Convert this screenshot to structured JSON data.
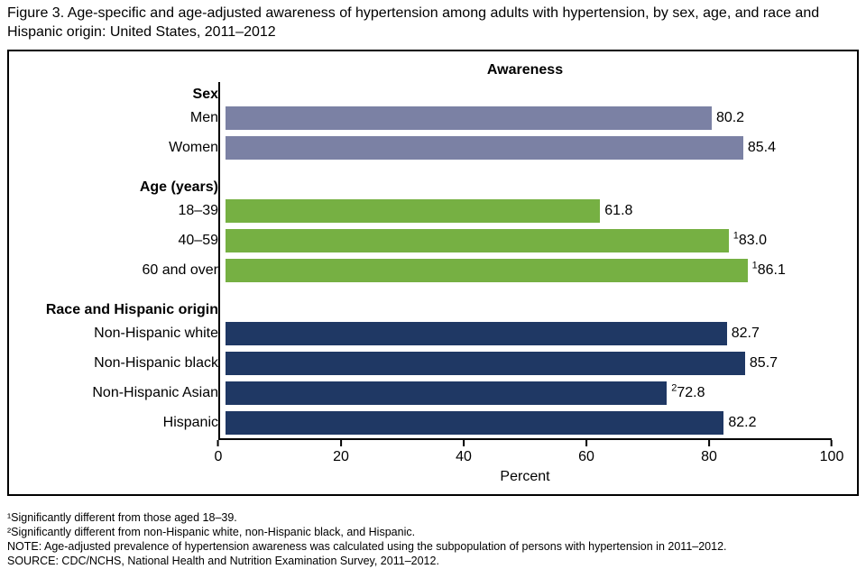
{
  "figure_title": "Figure 3. Age-specific and age-adjusted awareness of hypertension among adults with hypertension, by sex, age, and race and Hispanic origin: United States, 2011–2012",
  "chart_data": {
    "type": "bar",
    "orientation": "horizontal",
    "title": "Awareness",
    "xlabel": "Percent",
    "xlim": [
      0,
      100
    ],
    "x_ticks": [
      0,
      20,
      40,
      60,
      80,
      100
    ],
    "grid": false,
    "legend": false,
    "groups": [
      {
        "header": "Sex",
        "color": "#7B81A4",
        "bars": [
          {
            "label": "Men",
            "value": 80.2,
            "value_label": "80.2"
          },
          {
            "label": "Women",
            "value": 85.4,
            "value_label": "85.4"
          }
        ]
      },
      {
        "header": "Age (years)",
        "color": "#76B043",
        "bars": [
          {
            "label": "18–39",
            "value": 61.8,
            "value_label": "61.8"
          },
          {
            "label": "40–59",
            "value": 83.0,
            "value_label": "83.0",
            "superscript": "1"
          },
          {
            "label": "60 and over",
            "value": 86.1,
            "value_label": "86.1",
            "superscript": "1"
          }
        ]
      },
      {
        "header": "Race and Hispanic origin",
        "color": "#1F3864",
        "bars": [
          {
            "label": "Non-Hispanic white",
            "value": 82.7,
            "value_label": "82.7"
          },
          {
            "label": "Non-Hispanic black",
            "value": 85.7,
            "value_label": "85.7"
          },
          {
            "label": "Non-Hispanic Asian",
            "value": 72.8,
            "value_label": "72.8",
            "superscript": "2"
          },
          {
            "label": "Hispanic",
            "value": 82.2,
            "value_label": "82.2"
          }
        ]
      }
    ]
  },
  "footnotes": [
    "¹Significantly different from those aged 18–39.",
    "²Significantly different from non-Hispanic white, non-Hispanic black, and Hispanic.",
    "NOTE: Age-adjusted prevalence of hypertension awareness was calculated using the subpopulation of persons with hypertension in 2011–2012.",
    "SOURCE: CDC/NCHS, National Health and Nutrition Examination Survey, 2011–2012."
  ]
}
